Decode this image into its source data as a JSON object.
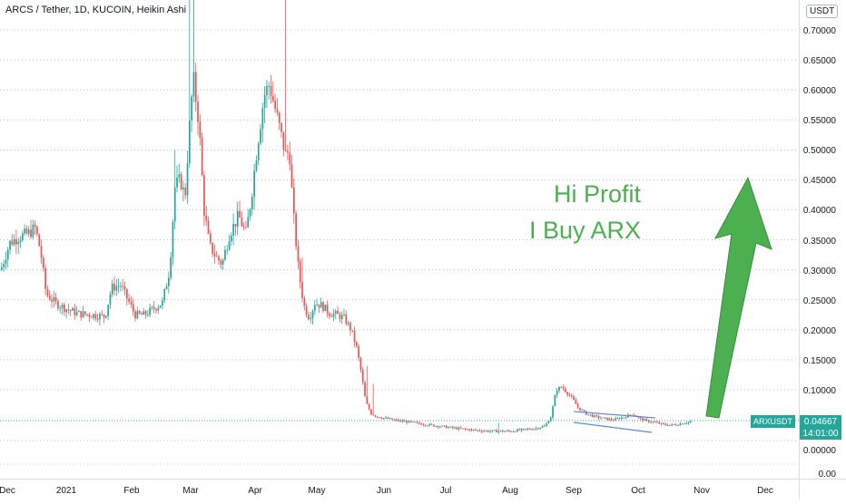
{
  "header": {
    "title": "ARCS / Tether, 1D, KUCOIN, Heikin Ashi",
    "currency_badge": "USDT"
  },
  "annotation": {
    "line1": "Hi Profit",
    "line2": "I Buy ARX",
    "color": "#4caf50"
  },
  "last_price": {
    "symbol": "ARXUSDT",
    "price": "0.04667",
    "countdown": "14:01:00",
    "value": 0.04667
  },
  "colors": {
    "up": "#26a69a",
    "down": "#ef5350",
    "grid": "#9cb7d6",
    "arrow": "#4caf50",
    "arrow_edge": "#388e3c",
    "trendline": "#5b8bd9"
  },
  "chart_data": {
    "type": "candlestick",
    "style": "Heikin Ashi",
    "title": "ARCS / Tether, 1D, KUCOIN, Heikin Ashi",
    "x_ticks": [
      "Dec",
      "2021",
      "Feb",
      "Mar",
      "Apr",
      "May",
      "Jun",
      "Jul",
      "Aug",
      "Sep",
      "Oct",
      "Nov",
      "Dec"
    ],
    "y_ticks": [
      "0.70000",
      "0.65000",
      "0.60000",
      "0.55000",
      "0.50000",
      "0.45000",
      "0.40000",
      "0.35000",
      "0.30000",
      "0.25000",
      "0.20000",
      "0.15000",
      "0.10000",
      "0.00000",
      "0.00"
    ],
    "ylim": [
      -0.03,
      0.74
    ],
    "grid": true,
    "series": [
      {
        "points": [
          {
            "x": "Dec",
            "v": 0.33
          },
          {
            "x": "2021",
            "v": 0.25
          },
          {
            "x": "Feb",
            "v": 0.22
          },
          {
            "x": "Mar",
            "v": 0.62
          },
          {
            "x": "Mar",
            "v": 0.3
          },
          {
            "x": "Apr",
            "v": 0.62
          },
          {
            "x": "May",
            "v": 0.23
          },
          {
            "x": "Jun",
            "v": 0.04
          },
          {
            "x": "Aug",
            "v": 0.03
          },
          {
            "x": "Sep",
            "v": 0.1
          },
          {
            "x": "Oct",
            "v": 0.04
          },
          {
            "x": "Nov",
            "v": 0.047
          }
        ]
      }
    ]
  }
}
